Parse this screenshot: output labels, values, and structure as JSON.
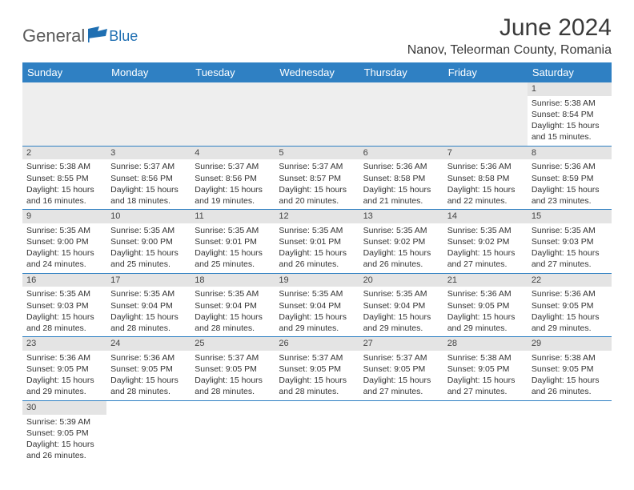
{
  "logo": {
    "general": "General",
    "blue": "Blue"
  },
  "title": "June 2024",
  "location": "Nanov, Teleorman County, Romania",
  "colors": {
    "header_bg": "#2f80c3",
    "header_fg": "#ffffff",
    "row_border": "#2f80c3",
    "daynum_bg": "#e4e4e4",
    "empty_bg": "#eeeeee",
    "logo_blue": "#1f6fb2",
    "text": "#333333"
  },
  "weekdays": [
    "Sunday",
    "Monday",
    "Tuesday",
    "Wednesday",
    "Thursday",
    "Friday",
    "Saturday"
  ],
  "weeks": [
    [
      null,
      null,
      null,
      null,
      null,
      null,
      {
        "n": 1,
        "sr": "5:38 AM",
        "ss": "8:54 PM",
        "dl": "15 hours and 15 minutes."
      }
    ],
    [
      {
        "n": 2,
        "sr": "5:38 AM",
        "ss": "8:55 PM",
        "dl": "15 hours and 16 minutes."
      },
      {
        "n": 3,
        "sr": "5:37 AM",
        "ss": "8:56 PM",
        "dl": "15 hours and 18 minutes."
      },
      {
        "n": 4,
        "sr": "5:37 AM",
        "ss": "8:56 PM",
        "dl": "15 hours and 19 minutes."
      },
      {
        "n": 5,
        "sr": "5:37 AM",
        "ss": "8:57 PM",
        "dl": "15 hours and 20 minutes."
      },
      {
        "n": 6,
        "sr": "5:36 AM",
        "ss": "8:58 PM",
        "dl": "15 hours and 21 minutes."
      },
      {
        "n": 7,
        "sr": "5:36 AM",
        "ss": "8:58 PM",
        "dl": "15 hours and 22 minutes."
      },
      {
        "n": 8,
        "sr": "5:36 AM",
        "ss": "8:59 PM",
        "dl": "15 hours and 23 minutes."
      }
    ],
    [
      {
        "n": 9,
        "sr": "5:35 AM",
        "ss": "9:00 PM",
        "dl": "15 hours and 24 minutes."
      },
      {
        "n": 10,
        "sr": "5:35 AM",
        "ss": "9:00 PM",
        "dl": "15 hours and 25 minutes."
      },
      {
        "n": 11,
        "sr": "5:35 AM",
        "ss": "9:01 PM",
        "dl": "15 hours and 25 minutes."
      },
      {
        "n": 12,
        "sr": "5:35 AM",
        "ss": "9:01 PM",
        "dl": "15 hours and 26 minutes."
      },
      {
        "n": 13,
        "sr": "5:35 AM",
        "ss": "9:02 PM",
        "dl": "15 hours and 26 minutes."
      },
      {
        "n": 14,
        "sr": "5:35 AM",
        "ss": "9:02 PM",
        "dl": "15 hours and 27 minutes."
      },
      {
        "n": 15,
        "sr": "5:35 AM",
        "ss": "9:03 PM",
        "dl": "15 hours and 27 minutes."
      }
    ],
    [
      {
        "n": 16,
        "sr": "5:35 AM",
        "ss": "9:03 PM",
        "dl": "15 hours and 28 minutes."
      },
      {
        "n": 17,
        "sr": "5:35 AM",
        "ss": "9:04 PM",
        "dl": "15 hours and 28 minutes."
      },
      {
        "n": 18,
        "sr": "5:35 AM",
        "ss": "9:04 PM",
        "dl": "15 hours and 28 minutes."
      },
      {
        "n": 19,
        "sr": "5:35 AM",
        "ss": "9:04 PM",
        "dl": "15 hours and 29 minutes."
      },
      {
        "n": 20,
        "sr": "5:35 AM",
        "ss": "9:04 PM",
        "dl": "15 hours and 29 minutes."
      },
      {
        "n": 21,
        "sr": "5:36 AM",
        "ss": "9:05 PM",
        "dl": "15 hours and 29 minutes."
      },
      {
        "n": 22,
        "sr": "5:36 AM",
        "ss": "9:05 PM",
        "dl": "15 hours and 29 minutes."
      }
    ],
    [
      {
        "n": 23,
        "sr": "5:36 AM",
        "ss": "9:05 PM",
        "dl": "15 hours and 29 minutes."
      },
      {
        "n": 24,
        "sr": "5:36 AM",
        "ss": "9:05 PM",
        "dl": "15 hours and 28 minutes."
      },
      {
        "n": 25,
        "sr": "5:37 AM",
        "ss": "9:05 PM",
        "dl": "15 hours and 28 minutes."
      },
      {
        "n": 26,
        "sr": "5:37 AM",
        "ss": "9:05 PM",
        "dl": "15 hours and 28 minutes."
      },
      {
        "n": 27,
        "sr": "5:37 AM",
        "ss": "9:05 PM",
        "dl": "15 hours and 27 minutes."
      },
      {
        "n": 28,
        "sr": "5:38 AM",
        "ss": "9:05 PM",
        "dl": "15 hours and 27 minutes."
      },
      {
        "n": 29,
        "sr": "5:38 AM",
        "ss": "9:05 PM",
        "dl": "15 hours and 26 minutes."
      }
    ],
    [
      {
        "n": 30,
        "sr": "5:39 AM",
        "ss": "9:05 PM",
        "dl": "15 hours and 26 minutes."
      },
      null,
      null,
      null,
      null,
      null,
      null
    ]
  ],
  "labels": {
    "sunrise": "Sunrise:",
    "sunset": "Sunset:",
    "daylight": "Daylight:"
  }
}
